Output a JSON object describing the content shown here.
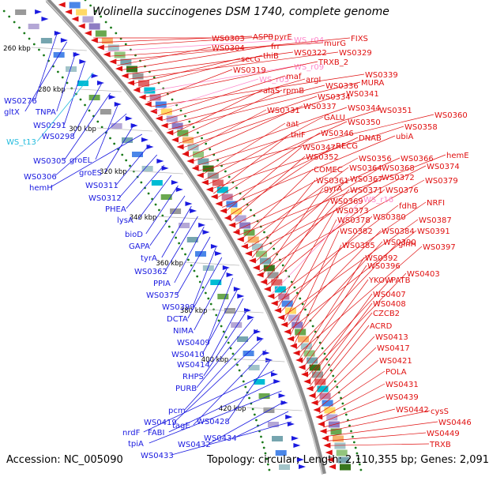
{
  "title": "Wolinella succinogenes DSM 1740, complete genome",
  "accession": "Accession: NC_005090",
  "summary": "Topology: circular; Length: 2,110,355 bp; Genes: 2,091",
  "colors": {
    "backbone": "#8a8a8a",
    "forward_gene": "#1a1ae0",
    "reverse_gene": "#e01010",
    "pseudo_gene": "#ff88cc",
    "rna_gene": "#22bbdd",
    "tick_dot": "#1a7a1a"
  },
  "ticks": [
    "260 kbp",
    "280 kbp",
    "300 kbp",
    "320 kbp",
    "340 kbp",
    "360 kbp",
    "380 kbp",
    "400 kbp",
    "420 kbp"
  ],
  "left_labels": [
    {
      "text": "WS0276",
      "kind": "forward"
    },
    {
      "text": "gltX",
      "kind": "forward"
    },
    {
      "text": "TNPA",
      "kind": "forward"
    },
    {
      "text": "WS0291",
      "kind": "forward"
    },
    {
      "text": "WS_t13",
      "kind": "rna"
    },
    {
      "text": "WS0298",
      "kind": "forward"
    },
    {
      "text": "WS0305",
      "kind": "forward"
    },
    {
      "text": "groEL",
      "kind": "forward"
    },
    {
      "text": "WS0306",
      "kind": "forward"
    },
    {
      "text": "groES",
      "kind": "forward"
    },
    {
      "text": "hemH",
      "kind": "forward"
    },
    {
      "text": "WS0311",
      "kind": "forward"
    },
    {
      "text": "WS0312",
      "kind": "forward"
    },
    {
      "text": "PHEA",
      "kind": "forward"
    },
    {
      "text": "lysA",
      "kind": "forward"
    },
    {
      "text": "bioD",
      "kind": "forward"
    },
    {
      "text": "GAPA",
      "kind": "forward"
    },
    {
      "text": "tyrA",
      "kind": "forward"
    },
    {
      "text": "WS0362",
      "kind": "forward"
    },
    {
      "text": "PPIA",
      "kind": "forward"
    },
    {
      "text": "WS0375",
      "kind": "forward"
    },
    {
      "text": "WS0399",
      "kind": "forward"
    },
    {
      "text": "DCTA",
      "kind": "forward"
    },
    {
      "text": "NIMA",
      "kind": "forward"
    },
    {
      "text": "WS0409",
      "kind": "forward"
    },
    {
      "text": "WS0410",
      "kind": "forward"
    },
    {
      "text": "WS0414",
      "kind": "forward"
    },
    {
      "text": "RHPS",
      "kind": "forward"
    },
    {
      "text": "PURB",
      "kind": "forward"
    },
    {
      "text": "pcm",
      "kind": "forward"
    },
    {
      "text": "WS0419",
      "kind": "forward"
    },
    {
      "text": "tagE",
      "kind": "forward"
    },
    {
      "text": "WS0428",
      "kind": "forward"
    },
    {
      "text": "nrdF",
      "kind": "forward"
    },
    {
      "text": "FABI",
      "kind": "forward"
    },
    {
      "text": "tpiA",
      "kind": "forward"
    },
    {
      "text": "WS0432",
      "kind": "forward"
    },
    {
      "text": "WS0434",
      "kind": "forward"
    },
    {
      "text": "WS0433",
      "kind": "forward"
    }
  ],
  "right_labels": [
    {
      "text": "WS0303",
      "kind": "reverse"
    },
    {
      "text": "ASPB",
      "kind": "reverse"
    },
    {
      "text": "pyrE",
      "kind": "reverse"
    },
    {
      "text": "WS_r04",
      "kind": "pseudo"
    },
    {
      "text": "murG",
      "kind": "reverse"
    },
    {
      "text": "FIXS",
      "kind": "reverse"
    },
    {
      "text": "WS0304",
      "kind": "reverse"
    },
    {
      "text": "frr",
      "kind": "reverse"
    },
    {
      "text": "WS0322",
      "kind": "reverse"
    },
    {
      "text": "WS0329",
      "kind": "reverse"
    },
    {
      "text": "secG",
      "kind": "reverse"
    },
    {
      "text": "thiB",
      "kind": "reverse"
    },
    {
      "text": "WS_r09",
      "kind": "pseudo"
    },
    {
      "text": "TRXB_2",
      "kind": "reverse"
    },
    {
      "text": "WS0319",
      "kind": "reverse"
    },
    {
      "text": "WS0339",
      "kind": "reverse"
    },
    {
      "text": "WS_r05",
      "kind": "pseudo"
    },
    {
      "text": "maf",
      "kind": "reverse"
    },
    {
      "text": "argI",
      "kind": "reverse"
    },
    {
      "text": "WS0336",
      "kind": "reverse"
    },
    {
      "text": "MURA",
      "kind": "reverse"
    },
    {
      "text": "alaS",
      "kind": "reverse"
    },
    {
      "text": "rpmB",
      "kind": "reverse"
    },
    {
      "text": "WS0334",
      "kind": "reverse"
    },
    {
      "text": "WS0341",
      "kind": "reverse"
    },
    {
      "text": "WS0331",
      "kind": "reverse"
    },
    {
      "text": "WS0337",
      "kind": "reverse"
    },
    {
      "text": "WS0344",
      "kind": "reverse"
    },
    {
      "text": "WS0351",
      "kind": "reverse"
    },
    {
      "text": "WS0360",
      "kind": "reverse"
    },
    {
      "text": "aat",
      "kind": "reverse"
    },
    {
      "text": "GALU",
      "kind": "reverse"
    },
    {
      "text": "WS0350",
      "kind": "reverse"
    },
    {
      "text": "WS0358",
      "kind": "reverse"
    },
    {
      "text": "thiF",
      "kind": "reverse"
    },
    {
      "text": "WS0346",
      "kind": "reverse"
    },
    {
      "text": "DNAB",
      "kind": "reverse"
    },
    {
      "text": "ubiA",
      "kind": "reverse"
    },
    {
      "text": "WS0347",
      "kind": "reverse"
    },
    {
      "text": "RECG",
      "kind": "reverse"
    },
    {
      "text": "WS0352",
      "kind": "reverse"
    },
    {
      "text": "WS0356",
      "kind": "reverse"
    },
    {
      "text": "WS0366",
      "kind": "reverse"
    },
    {
      "text": "hemE",
      "kind": "reverse"
    },
    {
      "text": "COMEC",
      "kind": "reverse"
    },
    {
      "text": "WS0364",
      "kind": "reverse"
    },
    {
      "text": "WS0368",
      "kind": "reverse"
    },
    {
      "text": "WS0374",
      "kind": "reverse"
    },
    {
      "text": "WS0361",
      "kind": "reverse"
    },
    {
      "text": "WS0367",
      "kind": "reverse"
    },
    {
      "text": "WS0372",
      "kind": "reverse"
    },
    {
      "text": "WS0379",
      "kind": "reverse"
    },
    {
      "text": "gyrA",
      "kind": "reverse"
    },
    {
      "text": "WS0371",
      "kind": "reverse"
    },
    {
      "text": "WS0376",
      "kind": "reverse"
    },
    {
      "text": "WS0369",
      "kind": "reverse"
    },
    {
      "text": "WS_r16",
      "kind": "pseudo"
    },
    {
      "text": "fdhB",
      "kind": "reverse"
    },
    {
      "text": "NRFI",
      "kind": "reverse"
    },
    {
      "text": "WS0373",
      "kind": "reverse"
    },
    {
      "text": "WS0380",
      "kind": "reverse"
    },
    {
      "text": "WS0387",
      "kind": "reverse"
    },
    {
      "text": "WS0378",
      "kind": "reverse"
    },
    {
      "text": "WS0384",
      "kind": "reverse"
    },
    {
      "text": "WS0391",
      "kind": "reverse"
    },
    {
      "text": "WS0382",
      "kind": "reverse"
    },
    {
      "text": "WS0390",
      "kind": "reverse"
    },
    {
      "text": "WS0385",
      "kind": "reverse"
    },
    {
      "text": "glnH",
      "kind": "reverse"
    },
    {
      "text": "WS0397",
      "kind": "reverse"
    },
    {
      "text": "WS0392",
      "kind": "reverse"
    },
    {
      "text": "WS0396",
      "kind": "reverse"
    },
    {
      "text": "YKOW",
      "kind": "reverse"
    },
    {
      "text": "PATB",
      "kind": "reverse"
    },
    {
      "text": "WS0403",
      "kind": "reverse"
    },
    {
      "text": "WS0407",
      "kind": "reverse"
    },
    {
      "text": "WS0408",
      "kind": "reverse"
    },
    {
      "text": "CZCB2",
      "kind": "reverse"
    },
    {
      "text": "ACRD",
      "kind": "reverse"
    },
    {
      "text": "WS0413",
      "kind": "reverse"
    },
    {
      "text": "WS0417",
      "kind": "reverse"
    },
    {
      "text": "WS0421",
      "kind": "reverse"
    },
    {
      "text": "POLA",
      "kind": "reverse"
    },
    {
      "text": "WS0431",
      "kind": "reverse"
    },
    {
      "text": "WS0439",
      "kind": "reverse"
    },
    {
      "text": "WS0442",
      "kind": "reverse"
    },
    {
      "text": "cysS",
      "kind": "reverse"
    },
    {
      "text": "WS0446",
      "kind": "reverse"
    },
    {
      "text": "WS0449",
      "kind": "reverse"
    },
    {
      "text": "TRXB",
      "kind": "reverse"
    }
  ]
}
